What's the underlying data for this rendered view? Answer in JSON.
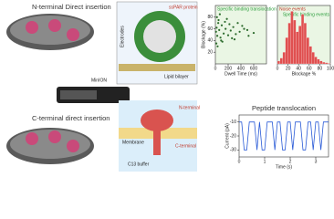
{
  "labels": {
    "n_insert": "N-terminal Direct insertion",
    "c_insert": "C-terminal direct insertion",
    "minion": "MinION",
    "electrodes": "Electrodes",
    "sspar": "ssPAR protein",
    "lipid": "Lipid bilayer",
    "nterm": "N-terminal",
    "cterm": "C-terminal",
    "membrane": "Membrane",
    "buffer": "C13 buffer"
  },
  "chart_data": [
    {
      "type": "scatter",
      "annotation": "Specific binding translocation",
      "x_label": "Dwell Time (ms)",
      "y_label": "Blockage (%)",
      "color": "#2d6b2d",
      "xlim": [
        0,
        800
      ],
      "ylim": [
        0,
        100
      ],
      "xticks": [
        0,
        200,
        400,
        600
      ],
      "yticks": [
        20,
        40,
        60,
        80
      ],
      "x": [
        10,
        20,
        30,
        45,
        60,
        80,
        100,
        130,
        160,
        200,
        240,
        280,
        320,
        380,
        450,
        520,
        600,
        15,
        25,
        50,
        90,
        150,
        220,
        300,
        420,
        35,
        70,
        110,
        180,
        260,
        350,
        500
      ],
      "y": [
        55,
        62,
        48,
        70,
        58,
        45,
        66,
        52,
        60,
        49,
        57,
        63,
        51,
        55,
        60,
        48,
        53,
        35,
        80,
        75,
        40,
        72,
        68,
        42,
        65,
        30,
        85,
        38,
        77,
        44,
        70,
        58
      ]
    },
    {
      "type": "histogram",
      "annotation": "Noise events",
      "annotation2": "Specific binding events",
      "x_label": "Blockage %",
      "color": "#e05050",
      "xlim": [
        0,
        100
      ],
      "ylim": [
        0,
        100
      ],
      "xticks": [
        0,
        20,
        40,
        60,
        80,
        100
      ],
      "bins": [
        0,
        5,
        10,
        15,
        20,
        25,
        30,
        35,
        40,
        45,
        50,
        55,
        60,
        65,
        70,
        75,
        80,
        85,
        90,
        95,
        100
      ],
      "counts": [
        5,
        10,
        20,
        45,
        70,
        90,
        75,
        55,
        65,
        85,
        70,
        45,
        30,
        20,
        12,
        8,
        5,
        3,
        2,
        1
      ]
    },
    {
      "type": "line",
      "title": "Peptide translocation",
      "x_label": "Time (s)",
      "y_label": "Current (pA)",
      "color": "#2a5bd7",
      "xlim": [
        0,
        3.5
      ],
      "ylim": [
        -35,
        -5
      ],
      "xticks": [
        0,
        1,
        2,
        3
      ],
      "yticks": [
        -10,
        -20,
        -30
      ],
      "x": [
        0,
        0.1,
        0.2,
        0.3,
        0.4,
        0.5,
        0.6,
        0.7,
        0.8,
        0.9,
        1.0,
        1.1,
        1.2,
        1.3,
        1.4,
        1.5,
        1.6,
        1.7,
        1.8,
        1.9,
        2.0,
        2.1,
        2.2,
        2.3,
        2.4,
        2.5,
        2.6,
        2.7,
        2.8,
        2.9,
        3.0,
        3.1,
        3.2,
        3.3,
        3.4,
        3.5
      ],
      "values": [
        -10,
        -10,
        -30,
        -30,
        -10,
        -10,
        -10,
        -30,
        -10,
        -30,
        -30,
        -10,
        -10,
        -10,
        -30,
        -10,
        -10,
        -30,
        -30,
        -10,
        -10,
        -30,
        -10,
        -10,
        -10,
        -30,
        -30,
        -10,
        -10,
        -30,
        -10,
        -10,
        -30,
        -10,
        -10,
        -10
      ]
    }
  ]
}
